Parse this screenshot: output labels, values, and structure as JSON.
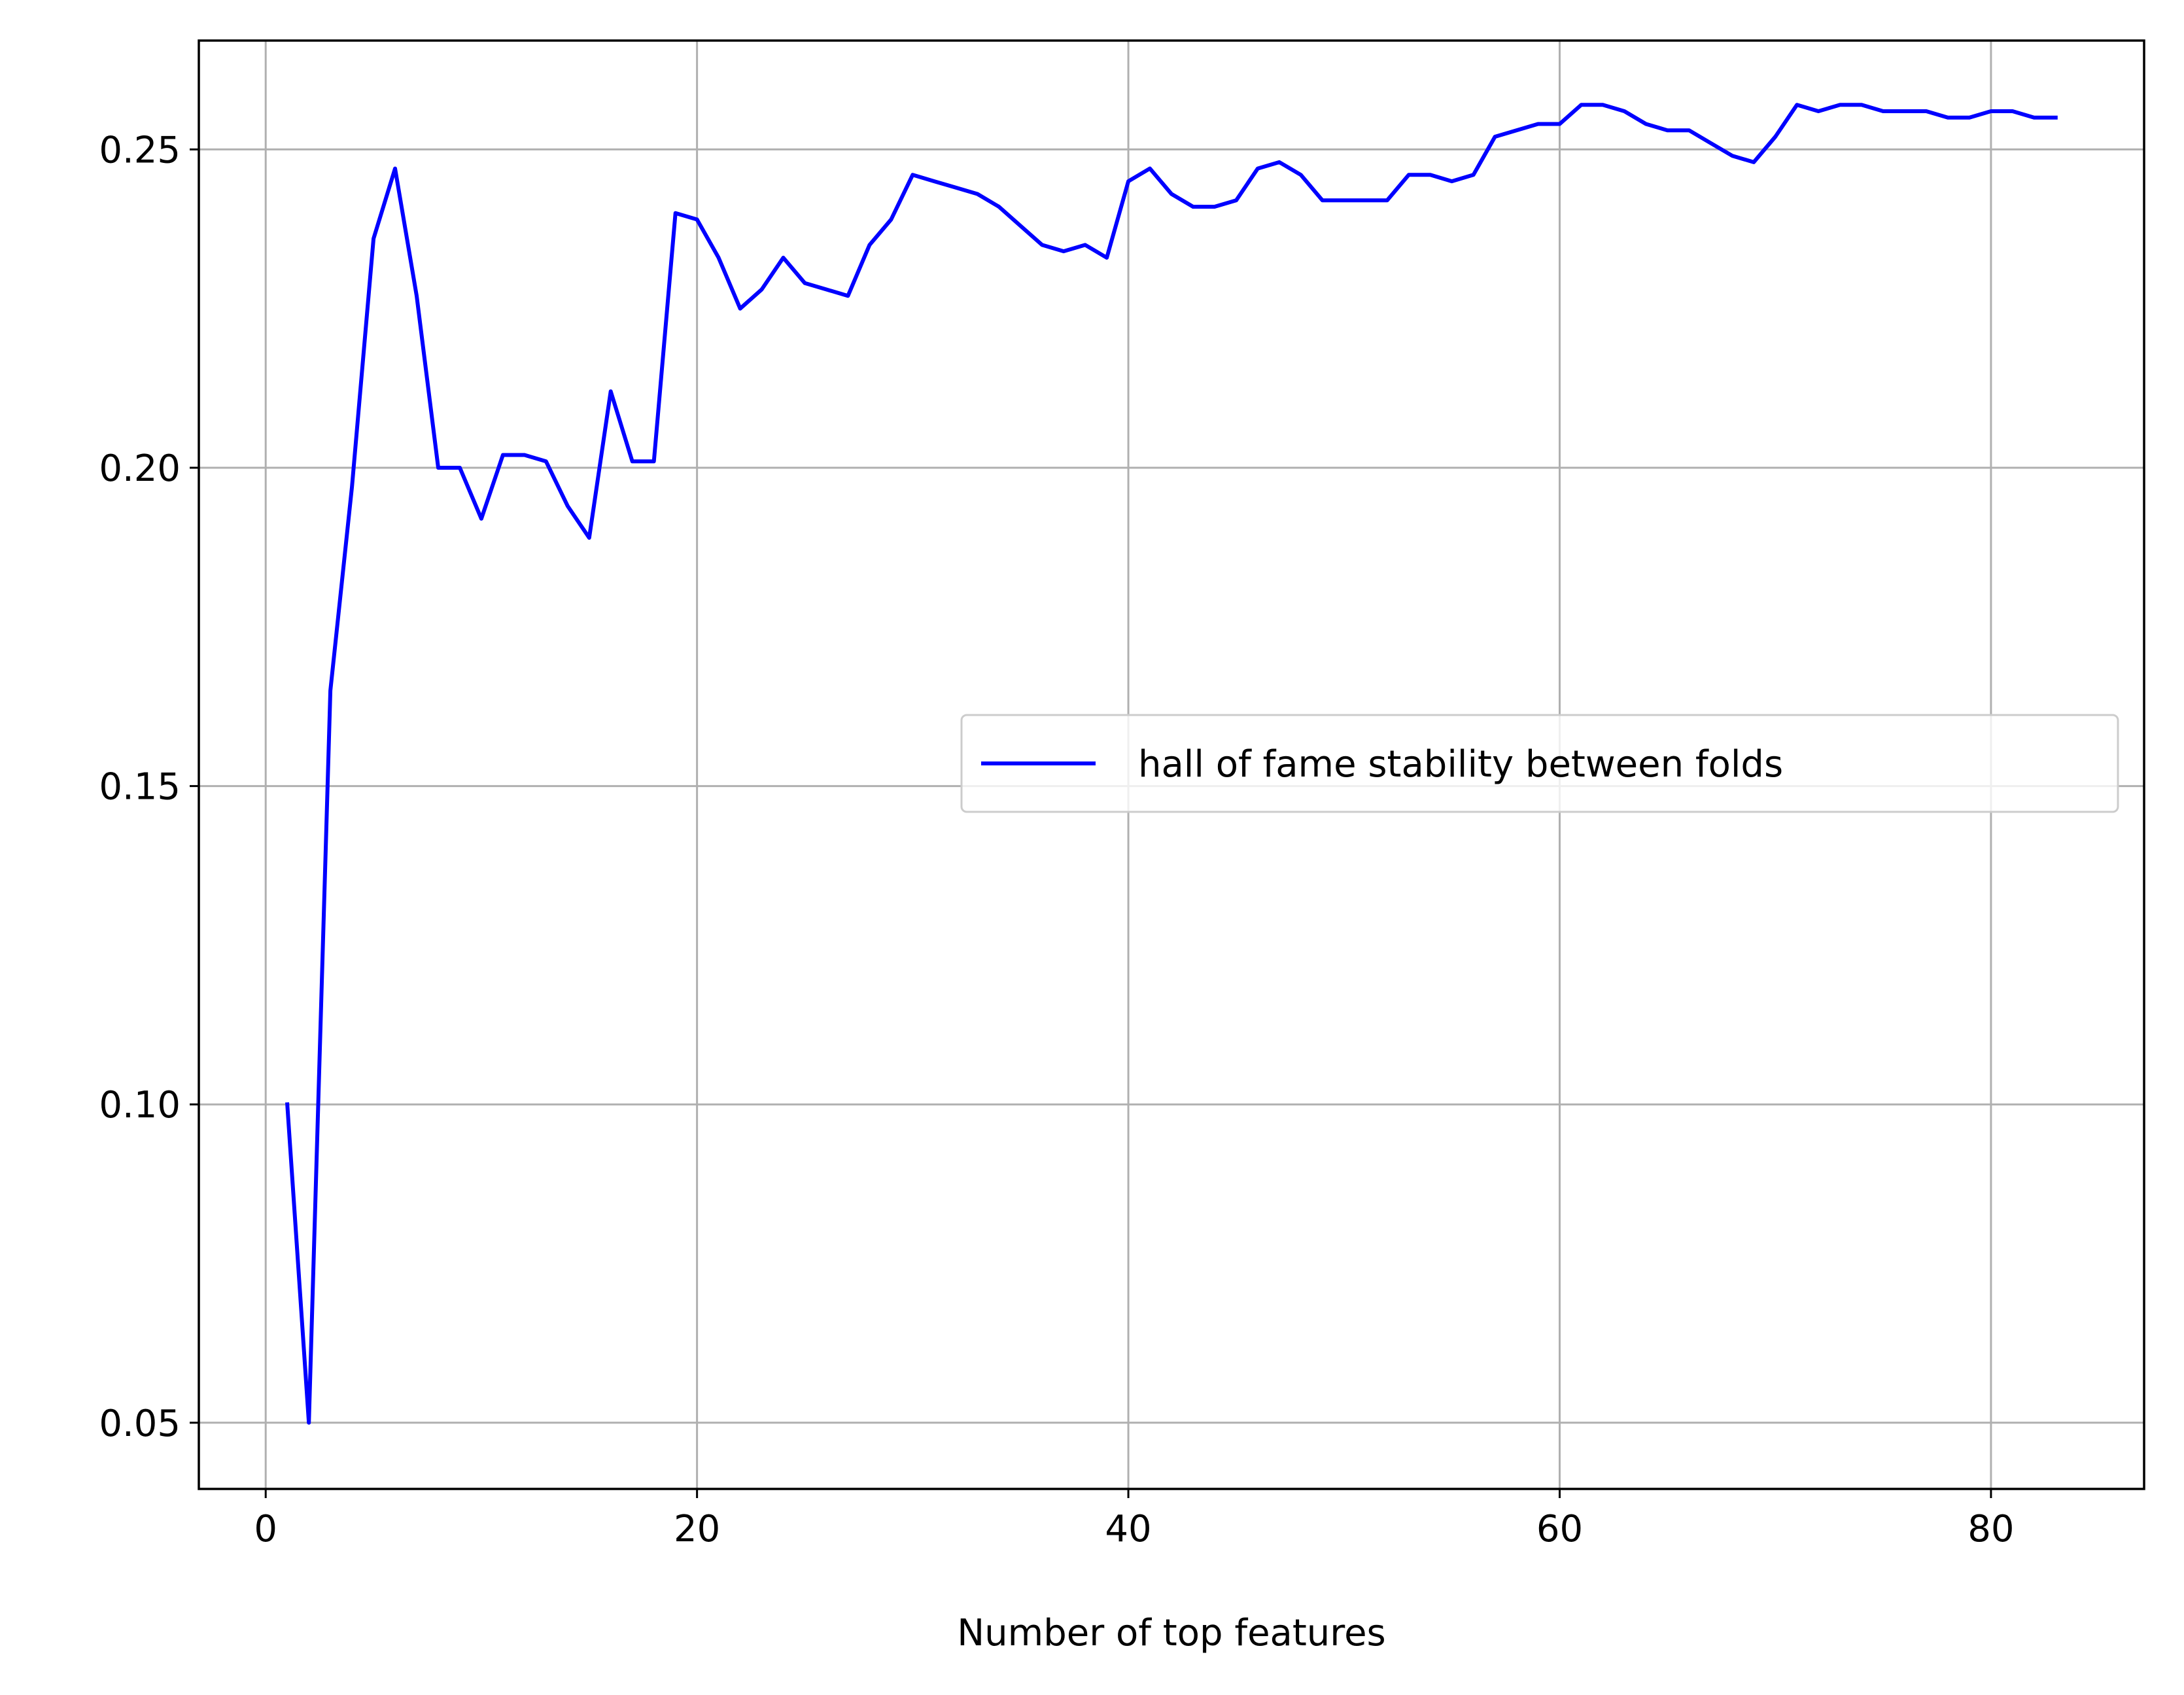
{
  "chart_data": {
    "type": "line",
    "title": "",
    "xlabel": "Number of top features",
    "ylabel": "",
    "xlim": [
      -3.1,
      87.1
    ],
    "ylim": [
      0.0396,
      0.2671
    ],
    "xticks": [
      0,
      20,
      40,
      60,
      80
    ],
    "yticks": [
      0.05,
      0.1,
      0.15,
      0.2,
      0.25
    ],
    "xtick_labels": [
      "0",
      "20",
      "40",
      "60",
      "80"
    ],
    "ytick_labels": [
      "0.05",
      "0.10",
      "0.15",
      "0.20",
      "0.25"
    ],
    "grid": true,
    "legend_position": "center-right",
    "series": [
      {
        "name": "hall of fame stability between folds",
        "color": "#0000ff",
        "x": [
          1,
          2,
          3,
          4,
          5,
          6,
          7,
          8,
          9,
          10,
          11,
          12,
          13,
          14,
          15,
          16,
          17,
          18,
          19,
          20,
          21,
          22,
          23,
          24,
          25,
          26,
          27,
          28,
          29,
          30,
          31,
          32,
          33,
          34,
          35,
          36,
          37,
          38,
          39,
          40,
          41,
          42,
          43,
          44,
          45,
          46,
          47,
          48,
          49,
          50,
          51,
          52,
          53,
          54,
          55,
          56,
          57,
          58,
          59,
          60,
          61,
          62,
          63,
          64,
          65,
          66,
          67,
          68,
          69,
          70,
          71,
          72,
          73,
          74,
          75,
          76,
          77,
          78,
          79,
          80,
          81,
          82,
          83
        ],
        "y": [
          0.1,
          0.05,
          0.165,
          0.197,
          0.236,
          0.247,
          0.227,
          0.2,
          0.2,
          0.192,
          0.202,
          0.202,
          0.201,
          0.194,
          0.189,
          0.212,
          0.201,
          0.201,
          0.24,
          0.239,
          0.233,
          0.225,
          0.228,
          0.233,
          0.229,
          0.228,
          0.227,
          0.235,
          0.239,
          0.246,
          0.245,
          0.244,
          0.243,
          0.241,
          0.238,
          0.235,
          0.234,
          0.235,
          0.233,
          0.245,
          0.247,
          0.243,
          0.241,
          0.241,
          0.242,
          0.247,
          0.248,
          0.246,
          0.242,
          0.242,
          0.242,
          0.242,
          0.246,
          0.246,
          0.245,
          0.246,
          0.252,
          0.253,
          0.254,
          0.254,
          0.257,
          0.257,
          0.256,
          0.254,
          0.253,
          0.253,
          0.251,
          0.249,
          0.248,
          0.252,
          0.257,
          0.256,
          0.257,
          0.257,
          0.256,
          0.256,
          0.256,
          0.255,
          0.255,
          0.256,
          0.256,
          0.255,
          0.255
        ]
      }
    ]
  }
}
